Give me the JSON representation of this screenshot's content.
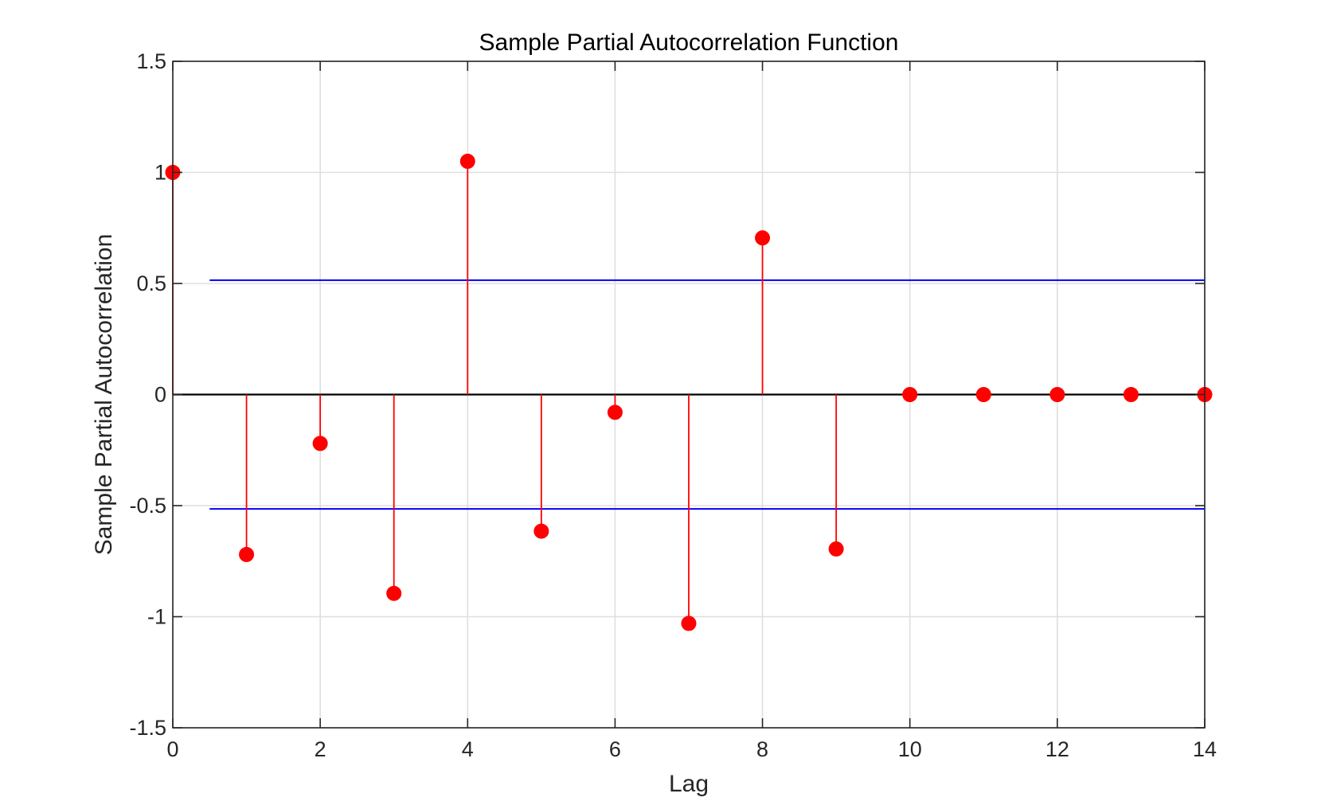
{
  "chart_data": {
    "type": "stem",
    "title": "Sample Partial Autocorrelation Function",
    "xlabel": "Lag",
    "ylabel": "Sample Partial Autocorrelation",
    "xlim": [
      0,
      14
    ],
    "ylim": [
      -1.5,
      1.5
    ],
    "x_ticks": [
      0,
      2,
      4,
      6,
      8,
      10,
      12,
      14
    ],
    "x_tick_labels": [
      "0",
      "2",
      "4",
      "6",
      "8",
      "10",
      "12",
      "14"
    ],
    "y_ticks": [
      1.5,
      1,
      0.5,
      0,
      -0.5,
      -1,
      -1.5
    ],
    "y_tick_labels": [
      "1.5",
      "1",
      "0.5",
      "0",
      "-0.5",
      "-1",
      "-1.5"
    ],
    "grid": true,
    "series": [
      {
        "x": [
          0,
          1,
          2,
          3,
          4,
          5,
          6,
          7,
          8,
          9,
          10,
          11,
          12,
          13,
          14
        ],
        "y": [
          1.0,
          -0.72,
          -0.22,
          -0.895,
          1.05,
          -0.615,
          -0.08,
          -1.03,
          0.705,
          -0.695,
          0,
          0,
          0,
          0,
          0
        ],
        "color": "#ff0000"
      }
    ],
    "confidence_bounds": {
      "upper": 0.515,
      "lower": -0.515,
      "x_range": [
        0.5,
        14
      ],
      "color": "#0000ff"
    },
    "zero_line_color": "#000000"
  }
}
